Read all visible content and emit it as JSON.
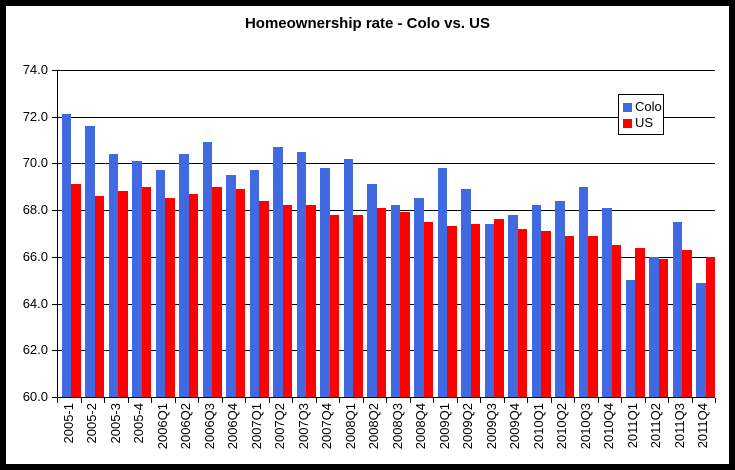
{
  "title": "Homeownership rate - Colo vs. US",
  "legend": {
    "items": [
      {
        "label": "Colo",
        "color": "#4169E1"
      },
      {
        "label": "US",
        "color": "#FF0000"
      }
    ]
  },
  "axes": {
    "y_tick_labels": [
      "74.0",
      "72.0",
      "70.0",
      "68.0",
      "66.0",
      "64.0",
      "62.0",
      "60.0"
    ]
  },
  "chart_data": {
    "type": "bar",
    "title": "Homeownership rate - Colo vs. US",
    "categories": [
      "2005-1",
      "2005-2",
      "2005-3",
      "2005-4",
      "2006Q1",
      "2006Q2",
      "2006Q3",
      "2006Q4",
      "2007Q1",
      "2007Q2",
      "2007Q3",
      "2007Q4",
      "2008Q1",
      "2008Q2",
      "2008Q3",
      "2008Q4",
      "2009Q1",
      "2009Q2",
      "2009Q3",
      "2009Q4",
      "2010Q1",
      "2010Q2",
      "2010Q3",
      "2010Q4",
      "2011Q1",
      "2011Q2",
      "2011Q3",
      "2011Q4"
    ],
    "series": [
      {
        "name": "Colo",
        "color": "#4169E1",
        "values": [
          72.1,
          71.6,
          70.4,
          70.1,
          69.7,
          70.4,
          70.9,
          69.5,
          69.7,
          70.7,
          70.5,
          69.8,
          70.2,
          69.1,
          68.2,
          68.5,
          69.8,
          68.9,
          67.4,
          67.8,
          68.2,
          68.4,
          69.0,
          68.1,
          65.0,
          66.0,
          67.5,
          64.9
        ]
      },
      {
        "name": "US",
        "color": "#FF0000",
        "values": [
          69.1,
          68.6,
          68.8,
          69.0,
          68.5,
          68.7,
          69.0,
          68.9,
          68.4,
          68.2,
          68.2,
          67.8,
          67.8,
          68.1,
          67.9,
          67.5,
          67.3,
          67.4,
          67.6,
          67.2,
          67.1,
          66.9,
          66.9,
          66.5,
          66.4,
          65.9,
          66.3,
          66.0
        ]
      }
    ],
    "xlabel": "",
    "ylabel": "",
    "ylim": [
      60.0,
      74.0
    ],
    "ytick_step": 2.0,
    "grid": true,
    "gridline_color": "#000000",
    "legend_position": "top-right-inside",
    "background": "#FFFFFF"
  }
}
